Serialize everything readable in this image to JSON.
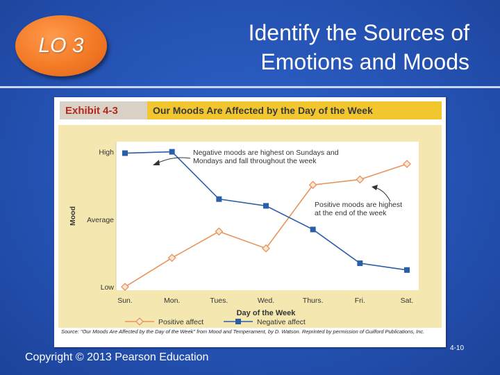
{
  "badge": {
    "label": "LO 3"
  },
  "title": {
    "line1": "Identify the Sources of",
    "line2": "Emotions and Moods"
  },
  "exhibit": {
    "tag": "Exhibit 4-3",
    "heading": "Our Moods Are Affected by the Day of the Week",
    "source": "Source: \"Our Moods Are Affected by the Day of the Week\" from Mood and Temperament, by D. Watson. Reprinted by permission of Guilford Publications, Inc."
  },
  "footer": {
    "copyright": "Copyright © 2013 Pearson Education",
    "page": "4-10"
  },
  "colors": {
    "positive": "#e8935a",
    "negative": "#2a5ea8",
    "panel": "#f4e8b0",
    "plot": "#ffffff"
  },
  "chart_data": {
    "type": "line",
    "xlabel": "Day of the Week",
    "ylabel": "Mood",
    "categories": [
      "Sun.",
      "Mon.",
      "Tues.",
      "Wed.",
      "Thurs.",
      "Fri.",
      "Sat."
    ],
    "y_ticks": [
      {
        "label": "High",
        "value": 3
      },
      {
        "label": "Average",
        "value": 2
      },
      {
        "label": "Low",
        "value": 1
      }
    ],
    "ylim": [
      0.95,
      3.15
    ],
    "series": [
      {
        "name": "Positive affect",
        "values": [
          1.0,
          1.43,
          1.82,
          1.57,
          2.51,
          2.59,
          2.82
        ]
      },
      {
        "name": "Negative affect",
        "values": [
          2.98,
          3.0,
          2.3,
          2.2,
          1.85,
          1.35,
          1.25
        ]
      }
    ],
    "annotations": [
      {
        "text_lines": [
          "Negative moods are highest on Sundays and",
          "Mondays and fall throughout the week"
        ]
      },
      {
        "text_lines": [
          "Positive moods are highest",
          "at the end of the week"
        ]
      }
    ],
    "grid": false,
    "legend": "bottom"
  }
}
